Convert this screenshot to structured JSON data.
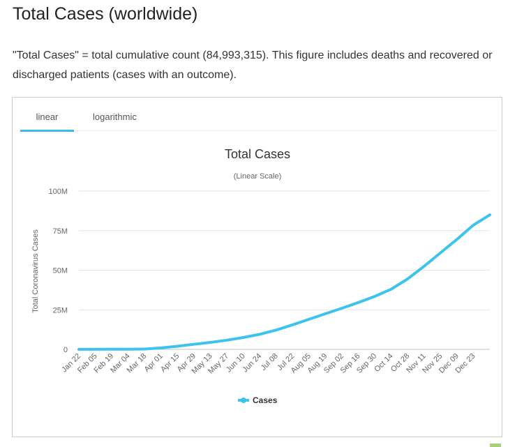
{
  "header": {
    "title": "Total Cases (worldwide)",
    "description": "\"Total Cases\" = total cumulative count (84,993,315). This figure includes deaths and recovered or discharged patients (cases with an outcome)."
  },
  "tabs": [
    {
      "label": "linear",
      "active": true
    },
    {
      "label": "logarithmic",
      "active": false
    }
  ],
  "colors": {
    "accent": "#3cb9e6",
    "line": "#3cc3ee"
  },
  "chart_data": {
    "type": "line",
    "title": "Total Cases",
    "subtitle": "(Linear Scale)",
    "xlabel": "",
    "ylabel": "Total Coronavirus Cases",
    "ylim": [
      0,
      100000000
    ],
    "y_ticks": [
      {
        "value": 0,
        "label": "0"
      },
      {
        "value": 25000000,
        "label": "25M"
      },
      {
        "value": 50000000,
        "label": "50M"
      },
      {
        "value": 75000000,
        "label": "75M"
      },
      {
        "value": 100000000,
        "label": "100M"
      }
    ],
    "x_tick_labels": [
      "Jan 22",
      "Feb 05",
      "Feb 19",
      "Mar 04",
      "Mar 18",
      "Apr 01",
      "Apr 15",
      "Apr 29",
      "May 13",
      "May 27",
      "Jun 10",
      "Jun 24",
      "Jul 08",
      "Jul 22",
      "Aug 05",
      "Aug 19",
      "Sep 02",
      "Sep 16",
      "Sep 30",
      "Oct 14",
      "Oct 28",
      "Nov 11",
      "Nov 25",
      "Dec 09",
      "Dec 23"
    ],
    "grid": true,
    "legend": "bottom",
    "series": [
      {
        "name": "Cases",
        "x": [
          "Jan 22",
          "Feb 05",
          "Feb 19",
          "Mar 04",
          "Mar 18",
          "Apr 01",
          "Apr 15",
          "Apr 29",
          "May 13",
          "May 27",
          "Jun 10",
          "Jun 24",
          "Jul 08",
          "Jul 22",
          "Aug 05",
          "Aug 19",
          "Sep 02",
          "Sep 16",
          "Sep 30",
          "Oct 14",
          "Oct 28",
          "Nov 11",
          "Nov 25",
          "Dec 09",
          "Dec 23",
          "Dec 31"
        ],
        "values": [
          500,
          28000,
          76000,
          95000,
          215000,
          940000,
          2000000,
          3200000,
          4400000,
          5800000,
          7500000,
          9500000,
          12200000,
          15500000,
          19000000,
          22500000,
          26000000,
          29600000,
          33500000,
          38000000,
          44500000,
          52500000,
          61000000,
          69500000,
          78500000,
          85000000
        ]
      }
    ]
  }
}
